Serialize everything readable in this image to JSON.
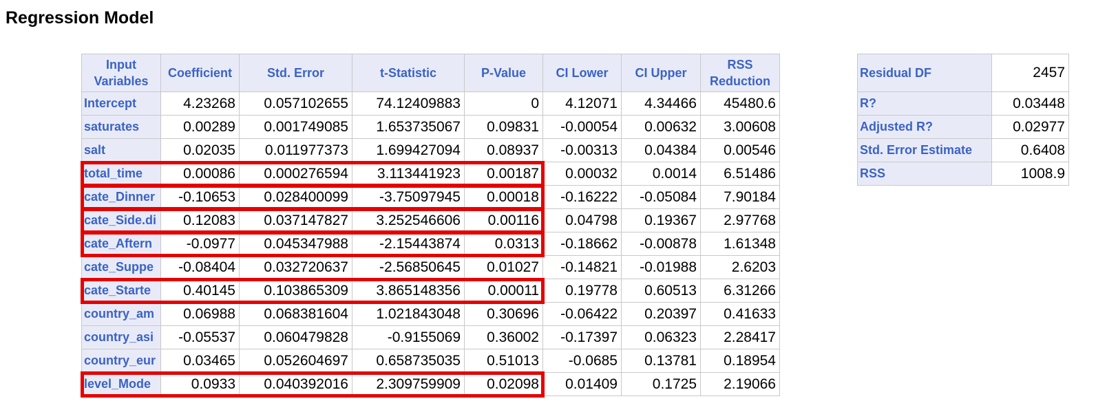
{
  "title": "Regression Model",
  "columns": [
    "Input Variables",
    "Coefficient",
    "Std. Error",
    "t-Statistic",
    "P-Value",
    "CI Lower",
    "CI Upper",
    "RSS Reduction"
  ],
  "rows": [
    {
      "name": "Intercept",
      "values": [
        "4.23268",
        "0.057102655",
        "74.12409883",
        "0",
        "4.12071",
        "4.34466",
        "45480.6"
      ]
    },
    {
      "name": "saturates",
      "values": [
        "0.00289",
        "0.001749085",
        "1.653735067",
        "0.09831",
        "-0.00054",
        "0.00632",
        "3.00608"
      ]
    },
    {
      "name": "salt",
      "values": [
        "0.02035",
        "0.011977373",
        "1.699427094",
        "0.08937",
        "-0.00313",
        "0.04384",
        "0.00546"
      ]
    },
    {
      "name": "total_time",
      "values": [
        "0.00086",
        "0.000276594",
        "3.113441923",
        "0.00187",
        "0.00032",
        "0.0014",
        "6.51486"
      ]
    },
    {
      "name": "cate_Dinner",
      "values": [
        "-0.10653",
        "0.028400099",
        "-3.75097945",
        "0.00018",
        "-0.16222",
        "-0.05084",
        "7.90184"
      ]
    },
    {
      "name": "cate_Side.di",
      "values": [
        "0.12083",
        "0.037147827",
        "3.252546606",
        "0.00116",
        "0.04798",
        "0.19367",
        "2.97768"
      ]
    },
    {
      "name": "cate_Aftern",
      "values": [
        "-0.0977",
        "0.045347988",
        "-2.15443874",
        "0.0313",
        "-0.18662",
        "-0.00878",
        "1.61348"
      ]
    },
    {
      "name": "cate_Suppe",
      "values": [
        "-0.08404",
        "0.032720637",
        "-2.56850645",
        "0.01027",
        "-0.14821",
        "-0.01988",
        "2.6203"
      ]
    },
    {
      "name": "cate_Starte",
      "values": [
        "0.40145",
        "0.103865309",
        "3.865148356",
        "0.00011",
        "0.19778",
        "0.60513",
        "6.31266"
      ]
    },
    {
      "name": "country_am",
      "values": [
        "0.06988",
        "0.068381604",
        "1.021843048",
        "0.30696",
        "-0.06422",
        "0.20397",
        "0.41633"
      ]
    },
    {
      "name": "country_asi",
      "values": [
        "-0.05537",
        "0.060479828",
        "-0.9155069",
        "0.36002",
        "-0.17397",
        "0.06323",
        "2.28417"
      ]
    },
    {
      "name": "country_eur",
      "values": [
        "0.03465",
        "0.052604697",
        "0.658735035",
        "0.51013",
        "-0.0685",
        "0.13781",
        "0.18954"
      ]
    },
    {
      "name": "level_Mode",
      "values": [
        "0.0933",
        "0.040392016",
        "2.309759909",
        "0.02098",
        "0.01409",
        "0.1725",
        "2.19066"
      ]
    }
  ],
  "stats": [
    {
      "label": "Residual DF",
      "value": "2457"
    },
    {
      "label": "R?",
      "value": "0.03448"
    },
    {
      "label": "Adjusted R?",
      "value": "0.02977"
    },
    {
      "label": "Std. Error Estimate",
      "value": "0.6408"
    },
    {
      "label": "RSS",
      "value": "1008.9"
    }
  ],
  "highlight_color": "#e60000",
  "highlighted_rows": [
    "total_time",
    "cate_Dinner",
    "cate_Side.di",
    "cate_Aftern",
    "cate_Starte",
    "level_Mode"
  ]
}
